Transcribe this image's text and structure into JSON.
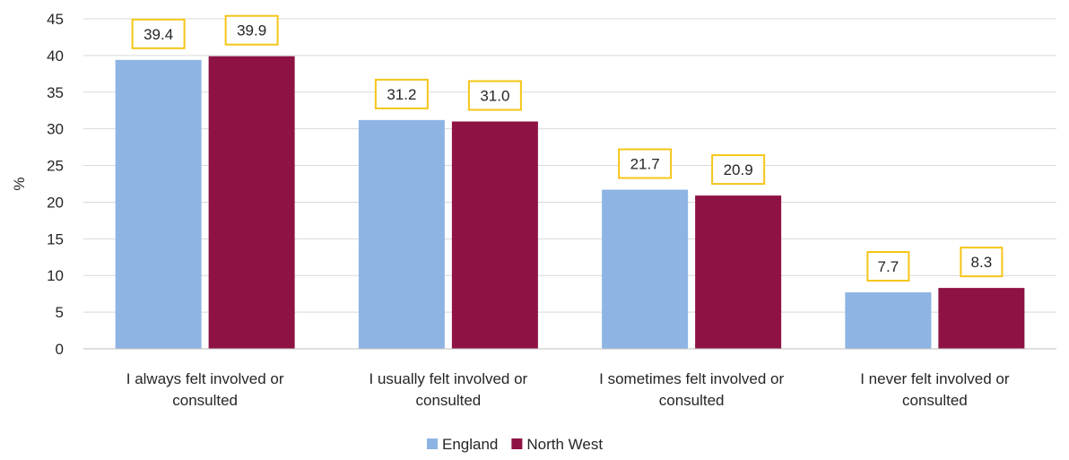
{
  "chart_data": {
    "type": "bar",
    "title": "",
    "xlabel": "",
    "ylabel": "%",
    "ylim": [
      0,
      45
    ],
    "yticks": [
      0,
      5,
      10,
      15,
      20,
      25,
      30,
      35,
      40,
      45
    ],
    "grid": true,
    "legend_position": "bottom",
    "categories": [
      [
        "I always felt involved or",
        "consulted"
      ],
      [
        "I usually felt involved or",
        "consulted"
      ],
      [
        "I sometimes felt involved or",
        "consulted"
      ],
      [
        "I never felt involved or",
        "consulted"
      ]
    ],
    "series": [
      {
        "name": "England",
        "color": "#8EB4E3",
        "values": [
          39.4,
          31.2,
          21.7,
          7.7
        ],
        "labels": [
          "39.4",
          "31.2",
          "21.7",
          "7.7"
        ]
      },
      {
        "name": "North West",
        "color": "#8E1244",
        "values": [
          39.9,
          31.0,
          20.9,
          8.3
        ],
        "labels": [
          "39.9",
          "31.0",
          "20.9",
          "8.3"
        ]
      }
    ],
    "label_box_color": "#F5C518",
    "gridline_color": "#D9D9D9"
  }
}
